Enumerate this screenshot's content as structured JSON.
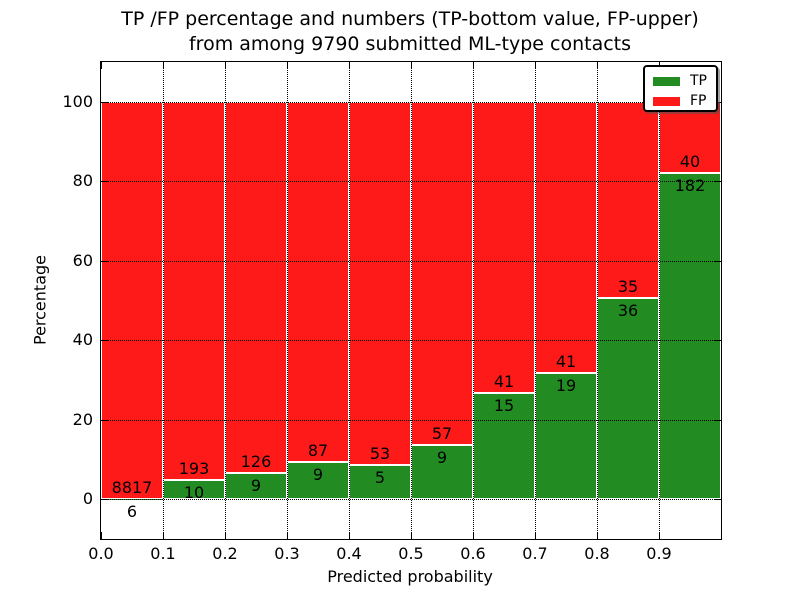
{
  "title": {
    "line1": "TP /FP percentage and numbers (TP-bottom value, FP-upper)",
    "line2": "from among 9790 submitted ML-type contacts"
  },
  "x_axis": {
    "label": "Predicted probability",
    "tick_labels": [
      "0.0",
      "0.1",
      "0.2",
      "0.3",
      "0.4",
      "0.5",
      "0.6",
      "0.7",
      "0.8",
      "0.9"
    ],
    "range": [
      0.0,
      1.0
    ]
  },
  "y_axis": {
    "label": "Percentage",
    "tick_labels": [
      "0",
      "20",
      "40",
      "60",
      "80",
      "100"
    ],
    "tick_values": [
      0,
      20,
      40,
      60,
      80,
      100
    ],
    "range": [
      -10,
      110
    ]
  },
  "legend": {
    "position": "upper-right",
    "entries": [
      {
        "label": "TP",
        "color": "#228c22"
      },
      {
        "label": "FP",
        "color": "#ff1a1a"
      }
    ]
  },
  "chart_data": {
    "type": "bar",
    "stacked": true,
    "normalized_to_percent": 100,
    "title": "TP /FP percentage and numbers (TP-bottom value, FP-upper)\nfrom among 9790 submitted ML-type contacts",
    "xlabel": "Predicted probability",
    "ylabel": "Percentage",
    "xlim": [
      0.0,
      1.0
    ],
    "ylim": [
      -10,
      110
    ],
    "grid": "dotted",
    "bin_starts": [
      0.0,
      0.1,
      0.2,
      0.3,
      0.4,
      0.5,
      0.6,
      0.7,
      0.8,
      0.9
    ],
    "bin_width": 0.1,
    "total_contacts": 9790,
    "series": [
      {
        "name": "TP",
        "color": "#228c22",
        "counts": [
          6,
          10,
          9,
          9,
          5,
          9,
          15,
          19,
          36,
          182
        ]
      },
      {
        "name": "FP",
        "color": "#ff1a1a",
        "counts": [
          8817,
          193,
          126,
          87,
          53,
          57,
          41,
          41,
          35,
          40
        ]
      }
    ],
    "tp_percent": [
      0.07,
      4.93,
      6.67,
      9.38,
      8.62,
      13.64,
      26.79,
      31.67,
      50.7,
      81.98
    ]
  }
}
